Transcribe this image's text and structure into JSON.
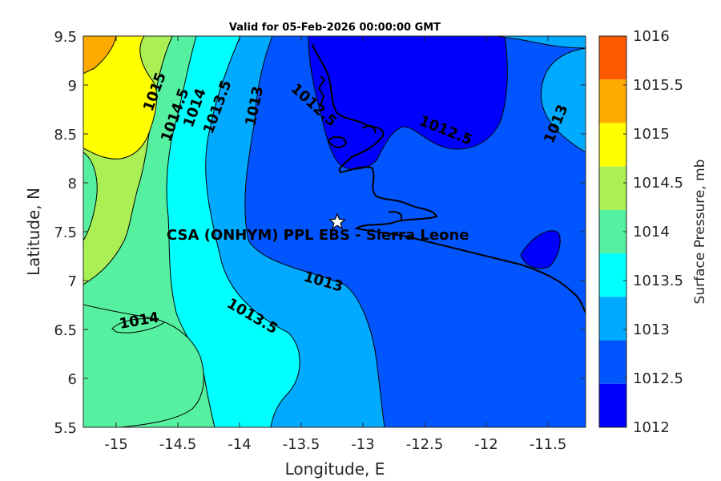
{
  "title": "Valid for 05-Feb-2026 00:00:00 GMT",
  "axes": {
    "xlabel": "Longitude, E",
    "ylabel": "Latitude, N",
    "xticks": [
      "-15",
      "-14.5",
      "-14",
      "-13.5",
      "-13",
      "-12.5",
      "-12",
      "-11.5"
    ],
    "yticks": [
      "9.5",
      "9",
      "8.5",
      "8",
      "7.5",
      "7",
      "6.5",
      "6",
      "5.5"
    ]
  },
  "colorbar": {
    "label": "Surface Pressure, mb",
    "levels": [
      "1016",
      "1015.5",
      "1015",
      "1014.5",
      "1014",
      "1013.5",
      "1013",
      "1012.5",
      "1012"
    ],
    "colors": [
      "#ff5a00",
      "#ffaa00",
      "#ffff00",
      "#aaf055",
      "#55f0a0",
      "#00ffff",
      "#00aaff",
      "#0055ff",
      "#0000ff"
    ]
  },
  "site": {
    "label": "CSA (ONHYM) PPL EBS  - Sierra Leone",
    "marker": "star-icon"
  },
  "contour_labels": [
    "1015",
    "1014.5",
    "1014",
    "1013.5",
    "1013",
    "1012.5",
    "1012.5",
    "1013",
    "1013",
    "1014",
    "1013.5"
  ],
  "chart_data": {
    "type": "contour",
    "title": "Valid for 05-Feb-2026 00:00:00 GMT",
    "xlabel": "Longitude, E",
    "ylabel": "Latitude, N",
    "xlim": [
      -15.3,
      -11.2
    ],
    "ylim": [
      5.5,
      9.5
    ],
    "variable": "Surface Pressure",
    "units": "mb",
    "color_levels": [
      1012,
      1012.5,
      1013,
      1013.5,
      1014,
      1014.5,
      1015,
      1015.5,
      1016
    ],
    "site": {
      "name": "CSA (ONHYM) PPL EBS  - Sierra Leone",
      "lon": -13.23,
      "lat": 7.6
    }
  }
}
